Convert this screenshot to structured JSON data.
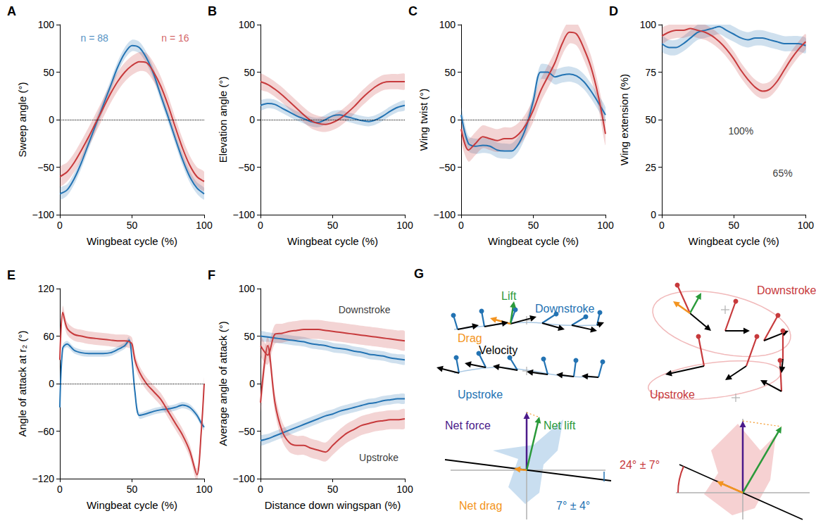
{
  "chart_data": [
    {
      "type": "line",
      "title": "A",
      "xlabel": "Wingbeat cycle (%)",
      "ylabel": "Sweep angle (°)",
      "xlim": [
        0,
        100
      ],
      "xticks": [
        0,
        50,
        100
      ],
      "ylim": [
        -100,
        100
      ],
      "yticks": [
        {
          "value": -100,
          "label": "−100"
        },
        {
          "value": -50,
          "label": "−50"
        },
        0,
        50,
        100
      ],
      "grid": false,
      "hline": 0,
      "x": [
        0,
        5,
        10,
        15,
        20,
        25,
        30,
        35,
        40,
        45,
        50,
        55,
        60,
        65,
        70,
        75,
        80,
        85,
        90,
        95,
        100
      ],
      "series": [
        {
          "color": "#2373b3",
          "spread": 6,
          "values": [
            -78,
            -74,
            -62,
            -45,
            -25,
            -5,
            15,
            35,
            55,
            70,
            78,
            76,
            65,
            48,
            25,
            3,
            -20,
            -42,
            -60,
            -72,
            -78
          ]
        },
        {
          "color": "#c73a3c",
          "spread": 10,
          "values": [
            -60,
            -55,
            -45,
            -32,
            -18,
            -3,
            12,
            27,
            40,
            50,
            57,
            61,
            60,
            50,
            35,
            15,
            -8,
            -30,
            -48,
            -60,
            -65
          ]
        }
      ],
      "annotations": [
        {
          "text": "n = 88",
          "x": 24,
          "y": 86,
          "color": "#2373b3"
        },
        {
          "text": "n = 16",
          "x": 80,
          "y": 86,
          "color": "#c73a3c"
        }
      ]
    },
    {
      "type": "line",
      "title": "B",
      "xlabel": "Wingbeat cycle (%)",
      "ylabel": "Elevation angle (°)",
      "xlim": [
        0,
        100
      ],
      "xticks": [
        0,
        50,
        100
      ],
      "ylim": [
        -100,
        100
      ],
      "yticks": [
        {
          "value": -100,
          "label": "−100"
        },
        {
          "value": -50,
          "label": "−50"
        },
        0,
        50,
        100
      ],
      "grid": false,
      "hline": 0,
      "x": [
        0,
        5,
        10,
        15,
        20,
        25,
        30,
        35,
        40,
        45,
        50,
        55,
        60,
        65,
        70,
        75,
        80,
        85,
        90,
        95,
        100
      ],
      "series": [
        {
          "color": "#2373b3",
          "spread": 5,
          "values": [
            15,
            17,
            16,
            12,
            8,
            4,
            1,
            -2,
            -3,
            0,
            4,
            5,
            3,
            1,
            -1,
            -2,
            0,
            4,
            9,
            13,
            15
          ]
        },
        {
          "color": "#c73a3c",
          "spread": 8,
          "values": [
            40,
            37,
            32,
            26,
            19,
            12,
            5,
            -1,
            -4,
            -5,
            -3,
            1,
            7,
            14,
            22,
            29,
            35,
            39,
            40,
            40,
            40
          ]
        }
      ]
    },
    {
      "type": "line",
      "title": "C",
      "xlabel": "Wingbeat cycle (%)",
      "ylabel": "Wing twist (°)",
      "xlim": [
        0,
        100
      ],
      "xticks": [
        0,
        50,
        100
      ],
      "ylim": [
        -100,
        100
      ],
      "yticks": [
        {
          "value": -100,
          "label": "−100"
        },
        {
          "value": -50,
          "label": "−50"
        },
        0,
        50,
        100
      ],
      "grid": false,
      "hline": 0,
      "x": [
        0,
        5,
        10,
        15,
        20,
        25,
        30,
        35,
        40,
        45,
        50,
        55,
        60,
        65,
        70,
        75,
        80,
        85,
        90,
        95,
        100
      ],
      "series": [
        {
          "color": "#2373b3",
          "spread": 8,
          "values": [
            5,
            -25,
            -28,
            -27,
            -28,
            -32,
            -33,
            -33,
            -25,
            -8,
            20,
            50,
            50,
            45,
            47,
            48,
            46,
            40,
            30,
            18,
            5
          ]
        },
        {
          "color": "#c73a3c",
          "spread": 12,
          "values": [
            -10,
            -32,
            -25,
            -18,
            -20,
            -22,
            -20,
            -20,
            -15,
            -5,
            10,
            30,
            45,
            60,
            80,
            92,
            90,
            75,
            55,
            25,
            -15
          ]
        }
      ]
    },
    {
      "type": "line",
      "title": "D",
      "xlabel": "Wingbeat cycle (%)",
      "ylabel": "Wing extension (%)",
      "xlim": [
        0,
        100
      ],
      "xticks": [
        0,
        50,
        100
      ],
      "ylim": [
        0,
        100
      ],
      "yticks": [
        0,
        25,
        50,
        75,
        100
      ],
      "grid": false,
      "x": [
        0,
        5,
        10,
        15,
        20,
        25,
        30,
        35,
        40,
        45,
        50,
        55,
        60,
        65,
        70,
        75,
        80,
        85,
        90,
        95,
        100
      ],
      "series": [
        {
          "color": "#2373b3",
          "spread": 4,
          "values": [
            90,
            88,
            88,
            90,
            93,
            96,
            97,
            98,
            99,
            97,
            95,
            93,
            92,
            93,
            93,
            92,
            91,
            90,
            90,
            90,
            89
          ]
        },
        {
          "color": "#c73a3c",
          "spread": 4,
          "values": [
            94,
            96,
            97,
            97,
            98,
            97,
            96,
            94,
            91,
            87,
            82,
            76,
            71,
            67,
            65,
            66,
            70,
            76,
            82,
            87,
            91
          ]
        }
      ],
      "annotations": [
        {
          "text": "100%",
          "x": 55,
          "y": 44,
          "color": "#000000"
        },
        {
          "text": "65%",
          "x": 84,
          "y": 22,
          "color": "#000000"
        }
      ]
    },
    {
      "type": "line",
      "title": "E",
      "xlabel": "Wingbeat cycle (%)",
      "ylabel": "Angle of attack at r₂ (°)",
      "xlim": [
        0,
        100
      ],
      "xticks": [
        0,
        50,
        100
      ],
      "ylim": [
        -120,
        120
      ],
      "yticks": [
        {
          "value": -120,
          "label": "−120"
        },
        {
          "value": -60,
          "label": "−60"
        },
        0,
        60,
        120
      ],
      "grid": false,
      "hline": 0,
      "x": [
        0,
        2,
        5,
        10,
        15,
        20,
        25,
        30,
        35,
        40,
        45,
        48,
        50,
        52,
        55,
        60,
        65,
        70,
        75,
        80,
        85,
        90,
        95,
        98,
        100
      ],
      "series": [
        {
          "color": "#2373b3",
          "spread": 4,
          "values": [
            -30,
            45,
            50,
            42,
            39,
            38,
            38,
            38,
            39,
            43,
            48,
            55,
            30,
            -10,
            -40,
            -38,
            -35,
            -33,
            -32,
            -30,
            -27,
            -30,
            -40,
            -50,
            -55
          ]
        },
        {
          "color": "#c73a3c",
          "spread": 8,
          "values": [
            30,
            90,
            70,
            62,
            60,
            58,
            57,
            56,
            55,
            54,
            54,
            53,
            50,
            30,
            15,
            0,
            -10,
            -20,
            -35,
            -50,
            -65,
            -85,
            -115,
            -60,
            0
          ]
        }
      ]
    },
    {
      "type": "line",
      "title": "F",
      "xlabel": "Distance down wingspan (%)",
      "ylabel": "Average angle of attack (°)",
      "xlim": [
        0,
        100
      ],
      "xticks": [
        0,
        50,
        100
      ],
      "ylim": [
        -100,
        100
      ],
      "yticks": [
        {
          "value": -100,
          "label": "−100"
        },
        {
          "value": -50,
          "label": "−50"
        },
        0,
        50,
        100
      ],
      "grid": false,
      "x": [
        0,
        5,
        10,
        15,
        20,
        25,
        30,
        35,
        40,
        45,
        50,
        55,
        60,
        65,
        70,
        75,
        80,
        85,
        90,
        95,
        100
      ],
      "series": [
        {
          "color": "#2373b3",
          "spread": 5,
          "values": [
            50,
            49,
            48,
            47,
            46,
            45,
            44,
            42,
            41,
            40,
            38,
            37,
            36,
            34,
            33,
            31,
            30,
            29,
            27,
            26,
            25
          ]
        },
        {
          "color": "#c73a3c",
          "spread": 10,
          "values": [
            40,
            30,
            52,
            53,
            55,
            56,
            57,
            57,
            57,
            56,
            55,
            54,
            53,
            52,
            51,
            50,
            49,
            48,
            47,
            46,
            45
          ]
        },
        {
          "color": "#2373b3",
          "spread": 5,
          "values": [
            -60,
            -58,
            -55,
            -52,
            -49,
            -46,
            -43,
            -40,
            -37,
            -34,
            -32,
            -29,
            -27,
            -25,
            -23,
            -21,
            -20,
            -18,
            -17,
            -16,
            -16
          ]
        },
        {
          "color": "#c73a3c",
          "spread": 10,
          "values": [
            -20,
            40,
            -20,
            -50,
            -62,
            -65,
            -65,
            -68,
            -70,
            -72,
            -65,
            -58,
            -52,
            -48,
            -44,
            -42,
            -40,
            -39,
            -38,
            -38,
            -37
          ]
        }
      ],
      "annotations": [
        {
          "text": "Downstroke",
          "x": 72,
          "y": 78,
          "color": "#000000"
        },
        {
          "text": "Upstroke",
          "x": 82,
          "y": -78,
          "color": "#000000"
        }
      ]
    }
  ],
  "panel_g": {
    "title": "G",
    "left": {
      "color": "#2373b3",
      "lift": "Lift",
      "drag": "Drag",
      "velocity": "Velocity",
      "downstroke": "Downstroke",
      "upstroke": "Upstroke",
      "net_force": "Net force",
      "net_lift": "Net lift",
      "net_drag": "Net drag",
      "angle": "7° ± 4°"
    },
    "right": {
      "color": "#c73a3c",
      "downstroke": "Downstroke",
      "upstroke": "Upstroke",
      "angle": "24° ± 7°"
    }
  }
}
